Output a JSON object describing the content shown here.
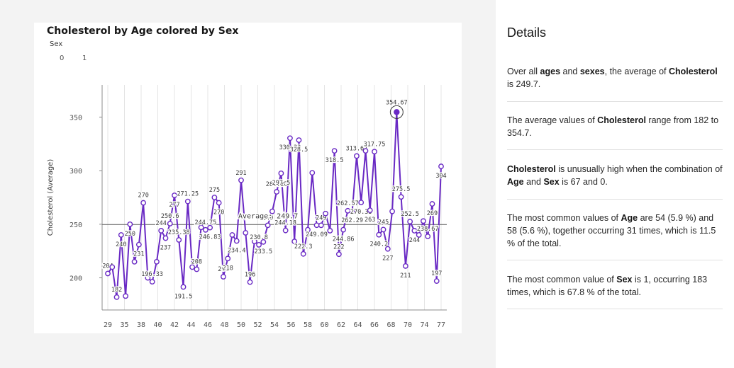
{
  "chart_data": {
    "type": "line",
    "title": "Cholesterol by Age colored by Sex",
    "legend": {
      "title": "Sex",
      "values": [
        "0",
        "1"
      ]
    },
    "ylabel": "Cholesterol (Average)",
    "xlabel": "",
    "ylim": [
      170,
      380
    ],
    "yticks": [
      200,
      250,
      300,
      350
    ],
    "xticks": [
      "29",
      "35",
      "38",
      "40",
      "42",
      "44",
      "46",
      "48",
      "50",
      "52",
      "54",
      "56",
      "58",
      "60",
      "62",
      "64",
      "66",
      "68",
      "70",
      "74",
      "77"
    ],
    "average": {
      "value": 249.7,
      "label": "Average: 249.7"
    },
    "highlight": {
      "value": 354.67,
      "label": "354.67"
    },
    "color": "#6929c4",
    "points": [
      {
        "y": 204,
        "label": "204"
      },
      {
        "y": 210,
        "label": ""
      },
      {
        "y": 182,
        "label": "182"
      },
      {
        "y": 240,
        "label": "240"
      },
      {
        "y": 183,
        "label": ""
      },
      {
        "y": 250,
        "label": "250"
      },
      {
        "y": 215,
        "label": ""
      },
      {
        "y": 231,
        "label": "231"
      },
      {
        "y": 270,
        "label": "270"
      },
      {
        "y": 200,
        "label": ""
      },
      {
        "y": 196.33,
        "label": "196.33"
      },
      {
        "y": 215,
        "label": ""
      },
      {
        "y": 244,
        "label": "244"
      },
      {
        "y": 237,
        "label": "237"
      },
      {
        "y": 250.6,
        "label": "250.6"
      },
      {
        "y": 277,
        "label": "277"
      },
      {
        "y": 235.38,
        "label": "235.38"
      },
      {
        "y": 191.5,
        "label": "191.5"
      },
      {
        "y": 271.25,
        "label": "271.25"
      },
      {
        "y": 210,
        "label": ""
      },
      {
        "y": 208,
        "label": "208"
      },
      {
        "y": 247,
        "label": ""
      },
      {
        "y": 244.75,
        "label": "244.75"
      },
      {
        "y": 246.83,
        "label": "246.83"
      },
      {
        "y": 275,
        "label": "275"
      },
      {
        "y": 270,
        "label": "270"
      },
      {
        "y": 201,
        "label": "201"
      },
      {
        "y": 218,
        "label": "218"
      },
      {
        "y": 240,
        "label": ""
      },
      {
        "y": 234.4,
        "label": "234.4"
      },
      {
        "y": 291,
        "label": "291"
      },
      {
        "y": 242,
        "label": ""
      },
      {
        "y": 196,
        "label": "196"
      },
      {
        "y": 234,
        "label": ""
      },
      {
        "y": 230.8,
        "label": "230.8"
      },
      {
        "y": 233.5,
        "label": "233.5"
      },
      {
        "y": 249,
        "label": "249"
      },
      {
        "y": 262,
        "label": ""
      },
      {
        "y": 280.25,
        "label": "280.25"
      },
      {
        "y": 297.5,
        "label": "297.5"
      },
      {
        "y": 244.18,
        "label": "244.18"
      },
      {
        "y": 330.33,
        "label": "330.33"
      },
      {
        "y": 234,
        "label": ""
      },
      {
        "y": 328.5,
        "label": "328.5"
      },
      {
        "y": 222.3,
        "label": "222.3"
      },
      {
        "y": 244.86,
        "label": ""
      },
      {
        "y": 298,
        "label": ""
      },
      {
        "y": 249.09,
        "label": "249.09"
      },
      {
        "y": 249,
        "label": "249"
      },
      {
        "y": 260,
        "label": ""
      },
      {
        "y": 244,
        "label": ""
      },
      {
        "y": 318.5,
        "label": "318.5"
      },
      {
        "y": 222,
        "label": "222"
      },
      {
        "y": 244.86,
        "label": "244.86"
      },
      {
        "y": 262.57,
        "label": "262.57"
      },
      {
        "y": 262.29,
        "label": "262.29"
      },
      {
        "y": 313.67,
        "label": "313.67"
      },
      {
        "y": 270.33,
        "label": "270.33"
      },
      {
        "y": 318.5,
        "label": ""
      },
      {
        "y": 263,
        "label": "263"
      },
      {
        "y": 317.75,
        "label": "317.75"
      },
      {
        "y": 240.2,
        "label": "240.2"
      },
      {
        "y": 245,
        "label": "245"
      },
      {
        "y": 227,
        "label": "227"
      },
      {
        "y": 262,
        "label": ""
      },
      {
        "y": 354.67,
        "label": ""
      },
      {
        "y": 275.5,
        "label": "275.5"
      },
      {
        "y": 211,
        "label": "211"
      },
      {
        "y": 252.5,
        "label": "252.5"
      },
      {
        "y": 244,
        "label": "244"
      },
      {
        "y": 240,
        "label": ""
      },
      {
        "y": 253,
        "label": ""
      },
      {
        "y": 238.67,
        "label": "238.67"
      },
      {
        "y": 269,
        "label": "269"
      },
      {
        "y": 197,
        "label": "197"
      },
      {
        "y": 304,
        "label": "304"
      }
    ]
  },
  "details": {
    "title": "Details",
    "insights": [
      [
        {
          "t": "Over all "
        },
        {
          "t": "ages",
          "b": true
        },
        {
          "t": " and "
        },
        {
          "t": "sexes",
          "b": true
        },
        {
          "t": ", the average of "
        },
        {
          "t": "Cholesterol",
          "b": true
        },
        {
          "t": " is 249.7."
        }
      ],
      [
        {
          "t": "The average values of "
        },
        {
          "t": "Cholesterol",
          "b": true
        },
        {
          "t": " range from 182 to 354.7."
        }
      ],
      [
        {
          "t": "Cholesterol",
          "b": true
        },
        {
          "t": " is unusually high when the combination of "
        },
        {
          "t": "Age",
          "b": true
        },
        {
          "t": " and "
        },
        {
          "t": "Sex",
          "b": true
        },
        {
          "t": " is 67 and 0."
        }
      ],
      [
        {
          "t": "The most common values of "
        },
        {
          "t": "Age",
          "b": true
        },
        {
          "t": " are 54 (5.9 %) and 58 (5.6 %), together occurring 31 times, which is 11.5 % of the total."
        }
      ],
      [
        {
          "t": "The most common value of "
        },
        {
          "t": "Sex",
          "b": true
        },
        {
          "t": " is 1, occurring 183 times, which is 67.8 % of the total."
        }
      ]
    ]
  }
}
